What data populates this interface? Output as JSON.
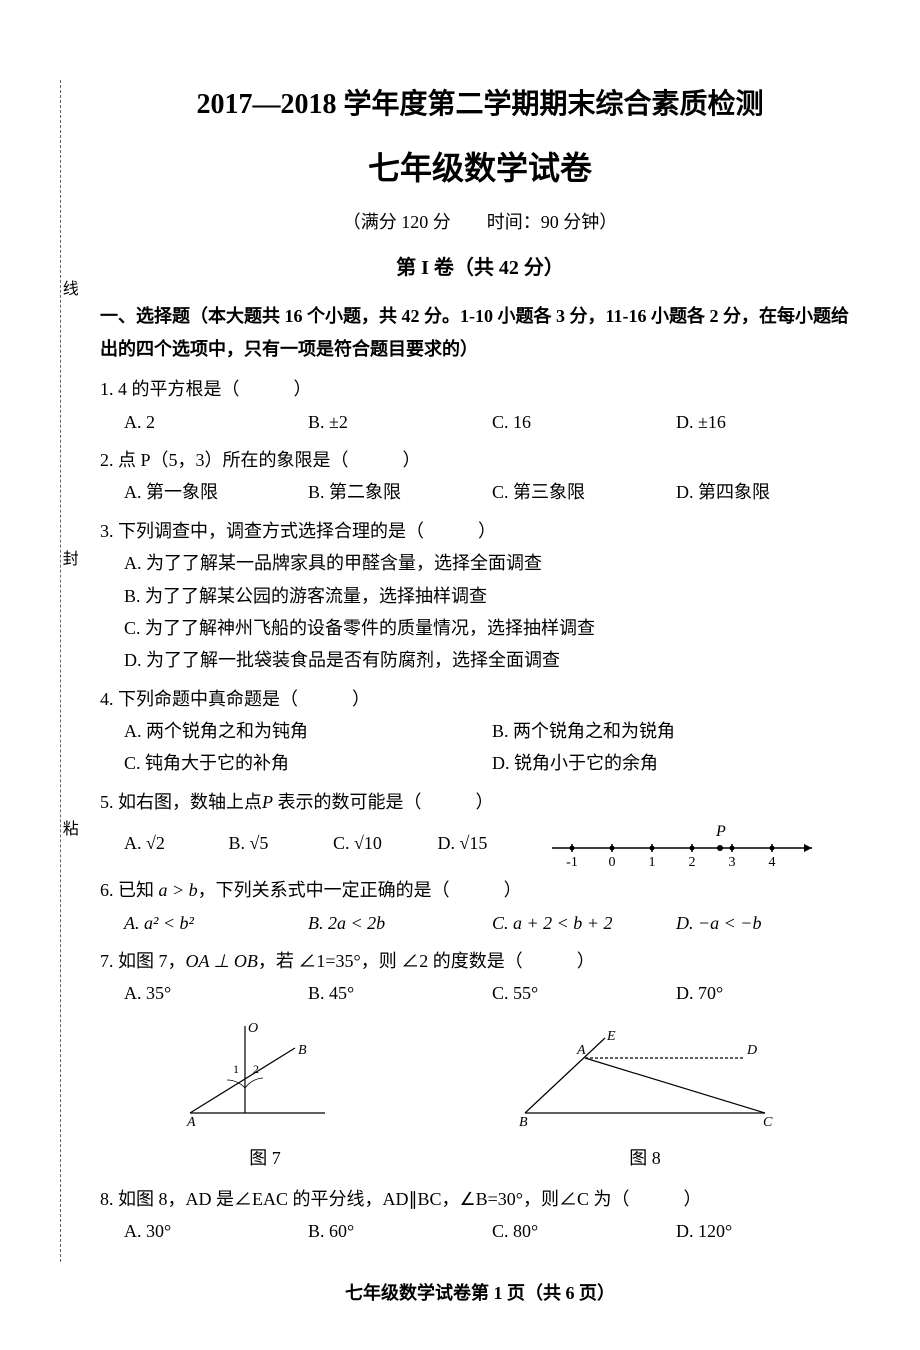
{
  "binding": {
    "chars": [
      "线",
      "封",
      "粘"
    ]
  },
  "header": {
    "title_main": "2017—2018 学年度第二学期期末综合素质检测",
    "title_sub": "七年级数学试卷",
    "meta": "（满分 120 分　　时间：90 分钟）",
    "section": "第 I 卷（共 42 分）"
  },
  "instruction": "一、选择题（本大题共 16 个小题，共 42 分。1-10 小题各 3 分，11-16 小题各 2 分，在每小题给出的四个选项中，只有一项是符合题目要求的）",
  "q1": {
    "stem": "1. 4 的平方根是（　　　）",
    "A": "A. 2",
    "B": "B. ±2",
    "C": "C. 16",
    "D": "D. ±16"
  },
  "q2": {
    "stem": "2. 点 P（5，3）所在的象限是（　　　）",
    "A": "A. 第一象限",
    "B": "B. 第二象限",
    "C": "C. 第三象限",
    "D": "D. 第四象限"
  },
  "q3": {
    "stem": "3. 下列调查中，调查方式选择合理的是（　　　）",
    "A": "A. 为了了解某一品牌家具的甲醛含量，选择全面调查",
    "B": "B. 为了了解某公园的游客流量，选择抽样调查",
    "C": "C. 为了了解神州飞船的设备零件的质量情况，选择抽样调查",
    "D": "D. 为了了解一批袋装食品是否有防腐剂，选择全面调查"
  },
  "q4": {
    "stem": "4. 下列命题中真命题是（　　　）",
    "A": "A. 两个锐角之和为钝角",
    "B": "B. 两个锐角之和为锐角",
    "C": "C. 钝角大于它的补角",
    "D": "D. 锐角小于它的余角"
  },
  "q5": {
    "stem_prefix": "5. 如右图，数轴上点",
    "stem_var": "P",
    "stem_suffix": " 表示的数可能是（　　　）",
    "A": "A. √2",
    "B": "B. √5",
    "C": "C. √10",
    "D": "D. √15",
    "numberline": {
      "ticks": [
        -1,
        0,
        1,
        2,
        3,
        4
      ],
      "point_label": "P",
      "point_x": 2.7,
      "line_color": "#000000",
      "tick_color": "#000000"
    }
  },
  "q6": {
    "stem_prefix": "6. 已知 ",
    "stem_expr": "a > b",
    "stem_suffix": "，下列关系式中一定正确的是（　　　）",
    "A": "A. a² < b²",
    "B": "B. 2a < 2b",
    "C": "C. a + 2 < b + 2",
    "D": "D. −a < −b"
  },
  "q7": {
    "stem_prefix": "7. 如图 7，",
    "stem_expr": "OA ⊥ OB",
    "stem_mid": "，若 ∠1=35°，则 ∠2 的度数是（　　　）",
    "A": "A. 35°",
    "B": "B. 45°",
    "C": "C. 55°",
    "D": "D. 70°",
    "fig_label": "图 7",
    "fig": {
      "color": "#000000"
    }
  },
  "q8": {
    "stem": "8. 如图 8，AD 是∠EAC 的平分线，AD∥BC，∠B=30°，则∠C 为（　　　）",
    "A": "A. 30°",
    "B": "B. 60°",
    "C": "C. 80°",
    "D": "D. 120°",
    "fig_label": "图 8",
    "fig": {
      "color": "#000000"
    }
  },
  "footer": "七年级数学试卷第 1 页（共 6 页）"
}
